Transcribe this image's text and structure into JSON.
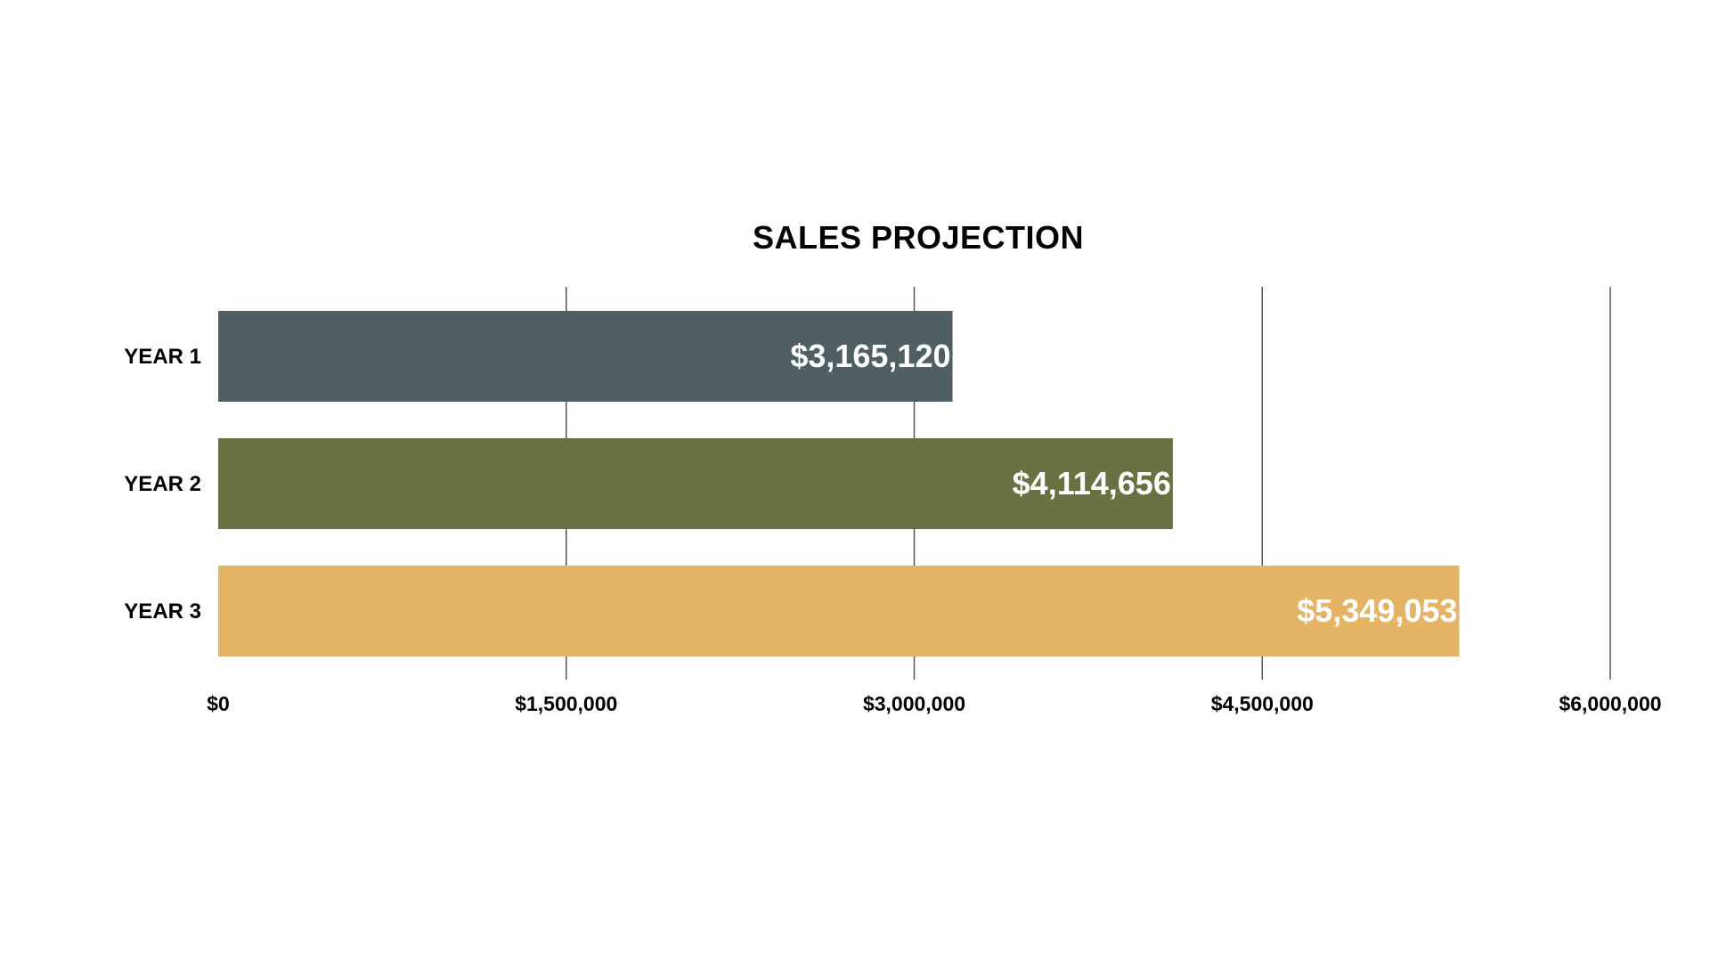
{
  "chart_data": {
    "type": "bar",
    "orientation": "horizontal",
    "title": "SALES PROJECTION",
    "categories": [
      "YEAR 1",
      "YEAR 2",
      "YEAR 3"
    ],
    "values": [
      3165120,
      4114656,
      5349053
    ],
    "value_labels": [
      "$3,165,120",
      "$4,114,656",
      "$5,349,053"
    ],
    "bar_colors": [
      "#4f5f63",
      "#6b7042",
      "#e6b465"
    ],
    "xlim": [
      0,
      6000000
    ],
    "x_ticks": [
      0,
      1500000,
      3000000,
      4500000,
      6000000
    ],
    "x_tick_labels": [
      "$0",
      "$1,500,000",
      "$3,000,000",
      "$4,500,000",
      "$6,000,000"
    ],
    "grid": true,
    "legend": "none",
    "xlabel": "",
    "ylabel": ""
  }
}
